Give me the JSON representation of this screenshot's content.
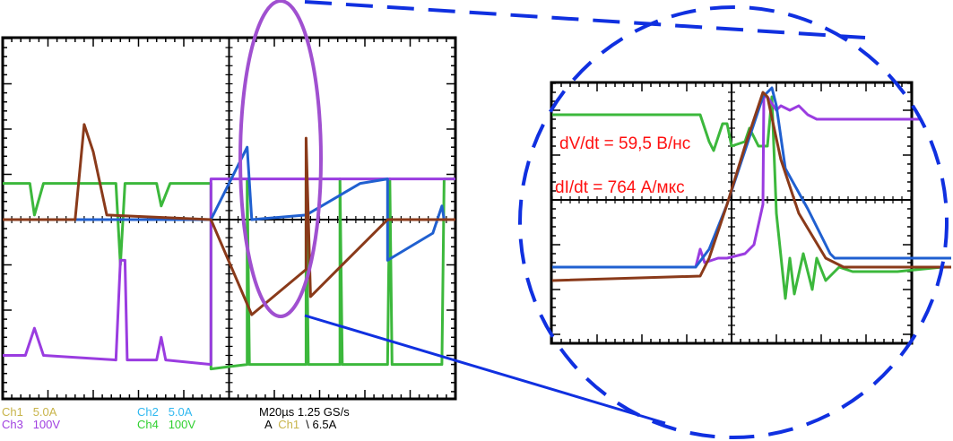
{
  "chart_data": [
    {
      "type": "line",
      "title": "",
      "x_units": "div",
      "y_units": "div",
      "xlim": [
        -5,
        5
      ],
      "ylim": [
        -4,
        4
      ],
      "grid": "center-crosshair with division ticks",
      "series": [
        {
          "channel": "Ch1",
          "color": "#8a3a1a",
          "points": [
            [
              -5.0,
              0
            ],
            [
              -3.4,
              0
            ],
            [
              -3.2,
              2.1
            ],
            [
              -3.0,
              1.5
            ],
            [
              -2.7,
              0.1
            ],
            [
              -0.4,
              0
            ],
            [
              0.5,
              -2.1
            ],
            [
              1.7,
              -1.1
            ],
            [
              1.7,
              1.8
            ],
            [
              1.8,
              -1.7
            ],
            [
              3.5,
              0
            ],
            [
              5.0,
              0
            ]
          ]
        },
        {
          "channel": "Ch2",
          "color": "#2060d0",
          "points": [
            [
              -5.0,
              0
            ],
            [
              -0.4,
              0
            ],
            [
              0.4,
              1.6
            ],
            [
              0.5,
              0
            ],
            [
              1.7,
              0.1
            ],
            [
              2.9,
              0.8
            ],
            [
              3.5,
              0.9
            ],
            [
              3.5,
              -0.9
            ],
            [
              4.5,
              -0.3
            ],
            [
              4.7,
              0.3
            ],
            [
              4.75,
              0
            ],
            [
              5.0,
              0
            ]
          ]
        },
        {
          "channel": "Ch3",
          "color": "#9a3ce0",
          "points": [
            [
              -5.0,
              -3.0
            ],
            [
              -4.5,
              -3.0
            ],
            [
              -4.3,
              -2.4
            ],
            [
              -4.1,
              -3.0
            ],
            [
              -2.5,
              -3.1
            ],
            [
              -2.4,
              -0.9
            ],
            [
              -2.3,
              -0.9
            ],
            [
              -2.25,
              -3.1
            ],
            [
              -1.6,
              -3.1
            ],
            [
              -1.5,
              -2.6
            ],
            [
              -1.4,
              -3.1
            ],
            [
              -0.4,
              -3.2
            ],
            [
              -0.4,
              0.9
            ],
            [
              5.0,
              0.9
            ]
          ]
        },
        {
          "channel": "Ch4",
          "color": "#3cb83c",
          "points": [
            [
              -5.0,
              0.8
            ],
            [
              -4.4,
              0.8
            ],
            [
              -4.3,
              0.1
            ],
            [
              -4.1,
              0.8
            ],
            [
              -2.5,
              0.8
            ],
            [
              -2.4,
              -1.0
            ],
            [
              -2.3,
              0.8
            ],
            [
              -1.6,
              0.8
            ],
            [
              -1.5,
              0.3
            ],
            [
              -1.3,
              0.8
            ],
            [
              -0.4,
              0.8
            ],
            [
              -0.4,
              -3.3
            ],
            [
              0.4,
              -3.2
            ],
            [
              0.4,
              0.9
            ],
            [
              0.45,
              -3.2
            ],
            [
              1.7,
              -3.2
            ],
            [
              1.7,
              0.9
            ],
            [
              1.75,
              -3.2
            ],
            [
              2.45,
              -3.2
            ],
            [
              2.45,
              0.9
            ],
            [
              2.5,
              -3.2
            ],
            [
              3.5,
              -3.2
            ],
            [
              3.55,
              0.9
            ],
            [
              3.6,
              -3.2
            ],
            [
              4.7,
              -3.2
            ],
            [
              4.75,
              0.9
            ],
            [
              5.0,
              0.9
            ]
          ]
        }
      ]
    },
    {
      "type": "line",
      "title": "",
      "x_units": "div",
      "y_units": "div",
      "xlim": [
        -4,
        4
      ],
      "ylim": [
        -3.2,
        2.6
      ],
      "grid": "center-crosshair with division ticks",
      "annotations": [
        "dV/dt = 59,5 В/нс",
        "dI/dt = 764 А/мкс"
      ],
      "series": [
        {
          "channel": "Ch1",
          "color": "#8a3a1a",
          "points": [
            [
              -4.0,
              -1.8
            ],
            [
              -0.7,
              -1.7
            ],
            [
              -0.5,
              -1.3
            ],
            [
              -0.1,
              -0.1
            ],
            [
              0.3,
              1.2
            ],
            [
              0.7,
              2.4
            ],
            [
              0.8,
              2.3
            ],
            [
              1.1,
              0.9
            ],
            [
              1.5,
              -0.3
            ],
            [
              2.1,
              -1.3
            ],
            [
              2.5,
              -1.5
            ],
            [
              4.9,
              -1.5
            ]
          ]
        },
        {
          "channel": "Ch2",
          "color": "#2060d0",
          "points": [
            [
              -4.0,
              -1.5
            ],
            [
              -0.8,
              -1.5
            ],
            [
              -0.5,
              -1.1
            ],
            [
              -0.1,
              -0.1
            ],
            [
              0.3,
              1.1
            ],
            [
              0.7,
              2.3
            ],
            [
              0.9,
              2.5
            ],
            [
              1.0,
              2.1
            ],
            [
              1.2,
              0.7
            ],
            [
              1.7,
              -0.2
            ],
            [
              2.2,
              -1.2
            ],
            [
              2.3,
              -1.3
            ],
            [
              4.9,
              -1.3
            ]
          ]
        },
        {
          "channel": "Ch3",
          "color": "#9a3ce0",
          "points": [
            [
              -4.0,
              -1.5
            ],
            [
              -0.8,
              -1.5
            ],
            [
              -0.7,
              -1.1
            ],
            [
              -0.6,
              -1.4
            ],
            [
              -0.3,
              -1.3
            ],
            [
              -0.1,
              -1.3
            ],
            [
              0.3,
              -1.2
            ],
            [
              0.5,
              -1.0
            ],
            [
              0.7,
              -0.1
            ],
            [
              0.72,
              2.3
            ],
            [
              0.8,
              2.3
            ],
            [
              1.0,
              2.0
            ],
            [
              1.1,
              2.1
            ],
            [
              1.3,
              2.0
            ],
            [
              1.5,
              2.1
            ],
            [
              1.7,
              1.9
            ],
            [
              1.9,
              1.8
            ],
            [
              4.2,
              1.8
            ]
          ]
        },
        {
          "channel": "Ch4",
          "color": "#3cb83c",
          "points": [
            [
              -4.0,
              1.9
            ],
            [
              -0.7,
              1.9
            ],
            [
              -0.5,
              1.3
            ],
            [
              -0.4,
              1.1
            ],
            [
              -0.2,
              1.7
            ],
            [
              -0.1,
              1.7
            ],
            [
              0.0,
              1.2
            ],
            [
              0.3,
              1.3
            ],
            [
              0.4,
              1.6
            ],
            [
              0.6,
              1.2
            ],
            [
              0.8,
              1.2
            ],
            [
              0.9,
              2.3
            ],
            [
              1.0,
              -0.3
            ],
            [
              1.2,
              -2.2
            ],
            [
              1.3,
              -1.3
            ],
            [
              1.4,
              -2.1
            ],
            [
              1.6,
              -1.2
            ],
            [
              1.8,
              -2.0
            ],
            [
              1.9,
              -1.3
            ],
            [
              2.1,
              -1.8
            ],
            [
              2.4,
              -1.5
            ],
            [
              2.7,
              -1.6
            ],
            [
              3.7,
              -1.6
            ],
            [
              4.7,
              -1.5
            ]
          ]
        }
      ]
    }
  ],
  "scope_readout": {
    "ch1": {
      "name": "Ch1",
      "scale": "5.0A",
      "color": "#c8b44a"
    },
    "ch2": {
      "name": "Ch2",
      "scale": "5.0A",
      "color": "#30b8f0"
    },
    "ch3": {
      "name": "Ch3",
      "scale": "100V",
      "color": "#a040e0"
    },
    "ch4": {
      "name": "Ch4",
      "scale": "100V",
      "color": "#30d030"
    },
    "timebase": "M20µs 1.25 GS/s",
    "trigger_prefix": "A",
    "trigger_source": "Ch1",
    "trigger_level": "\\ 6.5A"
  },
  "annotations": {
    "dv_dt": "dV/dt = 59,5 В/нс",
    "di_dt": "dI/dt = 764 А/мкс",
    "text_color": "#ff1010",
    "highlight_ellipse_color": "#a050d0",
    "zoom_outline_color": "#1030e0"
  }
}
